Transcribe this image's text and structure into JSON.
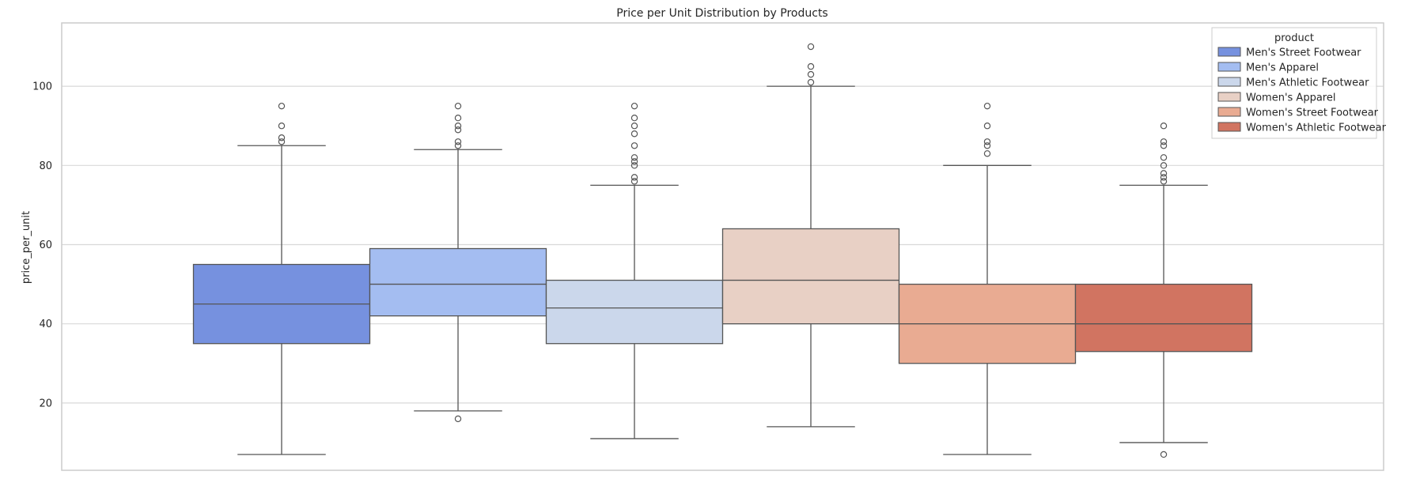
{
  "chart_data": {
    "type": "box",
    "title": "Price per Unit Distribution by Products",
    "xlabel": "",
    "ylabel": "price_per_unit",
    "ylim": [
      3,
      116
    ],
    "yticks": [
      20,
      40,
      60,
      80,
      100
    ],
    "grid": true,
    "legend": {
      "title": "product",
      "position": "top-right"
    },
    "series": [
      {
        "name": "Men's Street Footwear",
        "color": "#7691df",
        "whisker_low": 7,
        "q1": 35,
        "median": 45,
        "q3": 55,
        "whisker_high": 85,
        "outliers": [
          86,
          87,
          90,
          95
        ]
      },
      {
        "name": "Men's Apparel",
        "color": "#a4bdf1",
        "whisker_low": 18,
        "q1": 42,
        "median": 50,
        "q3": 59,
        "whisker_high": 84,
        "outliers": [
          16,
          85,
          86,
          89,
          90,
          92,
          95
        ]
      },
      {
        "name": "Men's Athletic Footwear",
        "color": "#cbd7eb",
        "whisker_low": 11,
        "q1": 35,
        "median": 44,
        "q3": 51,
        "whisker_high": 75,
        "outliers": [
          76,
          77,
          80,
          81,
          82,
          85,
          88,
          90,
          92,
          95
        ]
      },
      {
        "name": "Women's Apparel",
        "color": "#e8d0c5",
        "whisker_low": 14,
        "q1": 40,
        "median": 51,
        "q3": 64,
        "whisker_high": 100,
        "outliers": [
          101,
          103,
          105,
          110
        ]
      },
      {
        "name": "Women's Street Footwear",
        "color": "#e9ab92",
        "whisker_low": 7,
        "q1": 30,
        "median": 40,
        "q3": 50,
        "whisker_high": 80,
        "outliers": [
          83,
          85,
          86,
          90,
          95
        ]
      },
      {
        "name": "Women's Athletic Footwear",
        "color": "#d17461",
        "whisker_low": 10,
        "q1": 33,
        "median": 40,
        "q3": 50,
        "whisker_high": 75,
        "outliers": [
          7,
          76,
          77,
          78,
          80,
          82,
          85,
          86,
          90
        ]
      }
    ]
  }
}
